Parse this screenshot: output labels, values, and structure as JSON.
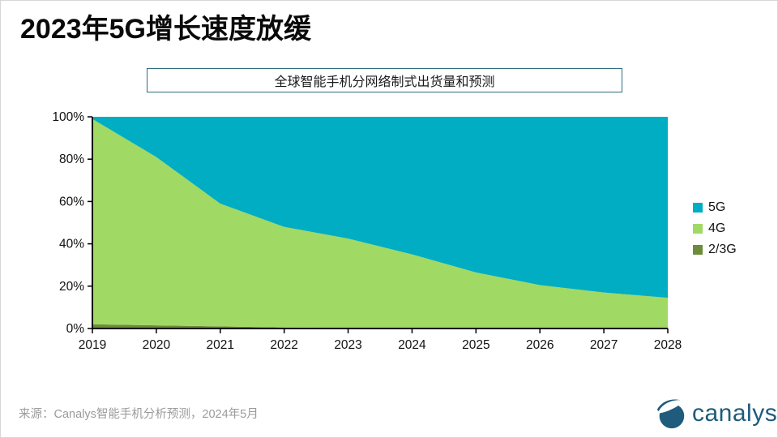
{
  "page": {
    "title": "2023年5G增长速度放缓"
  },
  "source": {
    "text": "来源：Canalys智能手机分析预测，2024年5月"
  },
  "logo": {
    "text": "canalys",
    "color": "#1e5b7d"
  },
  "colors": {
    "teal_5g": "#00ADC2",
    "green_4g": "#A0D964",
    "olive_23g": "#6C8C3C",
    "subtitle_border": "#2e6e7e",
    "axis": "#000000",
    "source_text_gray": "#9b9b9b"
  },
  "chart_data": {
    "type": "area",
    "subtype": "100-percent-stacked",
    "title": "全球智能手机分网络制式出货量和预测",
    "categories": [
      2019,
      2020,
      2021,
      2022,
      2023,
      2024,
      2025,
      2026,
      2027,
      2028
    ],
    "series": [
      {
        "name": "5G",
        "color": "#00ADC2",
        "values": [
          1.0,
          19.0,
          41.0,
          52.0,
          57.5,
          65.0,
          73.5,
          79.5,
          83.0,
          85.5
        ]
      },
      {
        "name": "4G",
        "color": "#A0D964",
        "values": [
          97.0,
          79.5,
          58.0,
          47.5,
          42.2,
          34.8,
          26.4,
          20.4,
          16.9,
          14.4
        ]
      },
      {
        "name": "2/3G",
        "color": "#6C8C3C",
        "values": [
          2.0,
          1.5,
          1.0,
          0.5,
          0.3,
          0.2,
          0.1,
          0.1,
          0.1,
          0.1
        ]
      }
    ],
    "xlabel": "",
    "ylabel": "",
    "ylim": [
      0,
      100
    ],
    "yticks": [
      0,
      20,
      40,
      60,
      80,
      100
    ],
    "ytick_suffix": "%",
    "grid": false,
    "legend_position": "right"
  }
}
